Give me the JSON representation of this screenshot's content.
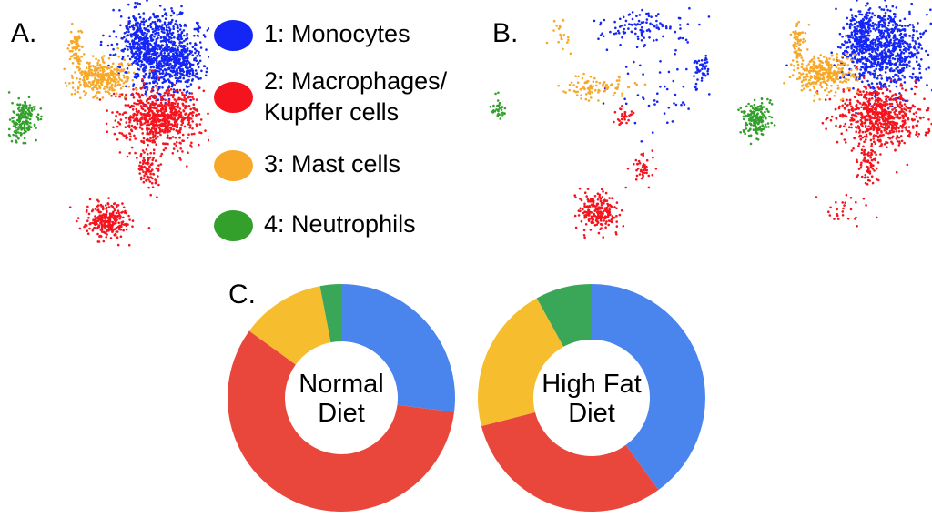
{
  "panels": {
    "a": "A.",
    "b": "B.",
    "c": "C."
  },
  "colors": {
    "monocytes": "#1426f5",
    "macrophages": "#f5141e",
    "mast": "#f7a828",
    "neutrophils": "#33a02c",
    "pie_blue": "#4a85ee",
    "pie_red": "#e9473b",
    "pie_yellow": "#f6bd2f",
    "pie_green": "#3aa758"
  },
  "legend": [
    {
      "key": "monocytes",
      "lines": [
        "1: Monocytes"
      ]
    },
    {
      "key": "macrophages",
      "lines": [
        "2: Macrophages/",
        "Kupffer cells"
      ]
    },
    {
      "key": "mast",
      "lines": [
        "3: Mast cells"
      ]
    },
    {
      "key": "neutrophils",
      "lines": [
        "4: Neutrophils"
      ]
    }
  ],
  "chart_data": {
    "type": "pie",
    "style": "donut",
    "categories": [
      "Monocytes",
      "Macrophages/Kupffer cells",
      "Mast cells",
      "Neutrophils"
    ],
    "series": [
      {
        "name": "Normal Diet",
        "label_lines": [
          "Normal",
          "Diet"
        ],
        "values": [
          27,
          58,
          12,
          3
        ]
      },
      {
        "name": "High Fat Diet",
        "label_lines": [
          "High Fat",
          "Diet"
        ],
        "values": [
          40,
          31,
          21,
          8
        ]
      }
    ]
  }
}
